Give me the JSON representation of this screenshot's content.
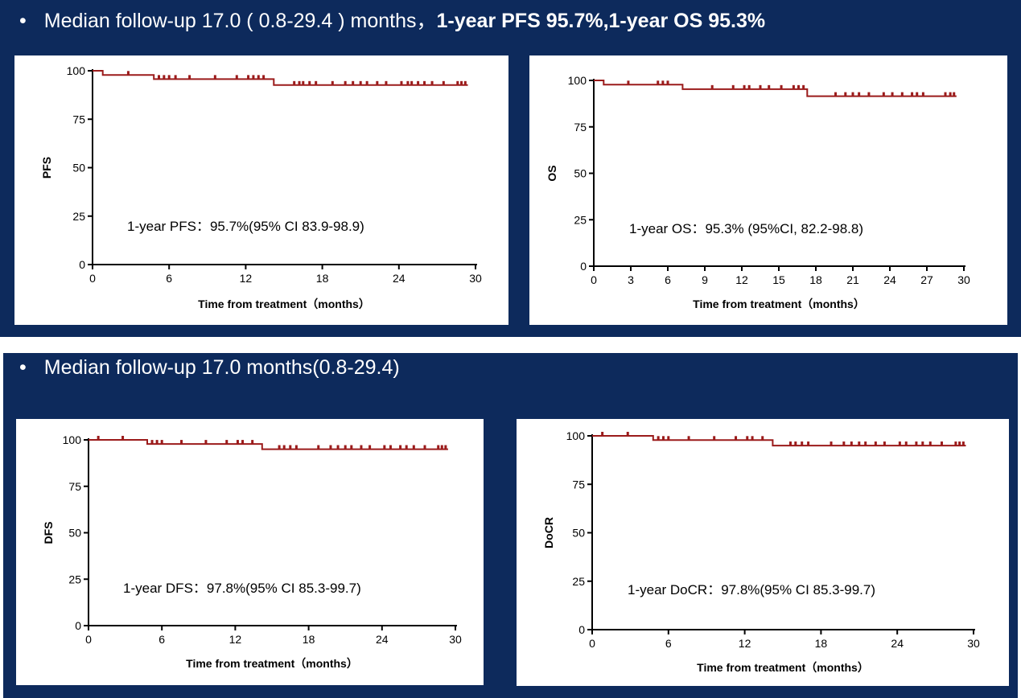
{
  "headline_top": {
    "bullet": "•",
    "text": "Median follow-up 17.0 ( 0.8-29.4 ) months，",
    "bold": "1-year PFS 95.7%,1-year OS  95.3%"
  },
  "headline_bottom": {
    "bullet": "•",
    "text": "Median follow-up 17.0 months(0.8-29.4)"
  },
  "colors": {
    "background_band": "#0d2a5c",
    "curve": "#9b1b1b",
    "panel": "#ffffff"
  },
  "chart_data": [
    {
      "id": "pfs",
      "type": "line",
      "step": true,
      "ylabel": "PFS",
      "xlabel": "Time from treatment（months）",
      "xlim": [
        0,
        30
      ],
      "ylim": [
        0,
        100
      ],
      "xticks": [
        0,
        6,
        12,
        18,
        24,
        30
      ],
      "yticks": [
        0,
        25,
        50,
        75,
        100
      ],
      "annotation": "1-year PFS：95.7%(95% CI 83.9-98.9)",
      "x": [
        0,
        0.8,
        0.8,
        4.8,
        4.8,
        14.2,
        14.2,
        29.4
      ],
      "y": [
        100,
        100,
        97.8,
        97.8,
        95.7,
        95.7,
        92.6,
        92.6
      ],
      "censored": [
        2.8,
        5.2,
        5.6,
        6.0,
        6.5,
        7.6,
        9.6,
        11.3,
        12.2,
        12.6,
        13.0,
        13.4,
        15.8,
        16.2,
        16.5,
        17.0,
        17.5,
        18.8,
        19.8,
        20.4,
        21.0,
        21.5,
        22.3,
        23.0,
        24.2,
        24.7,
        25.0,
        25.5,
        26.0,
        26.6,
        27.5,
        28.6,
        28.9,
        29.2
      ]
    },
    {
      "id": "os",
      "type": "line",
      "step": true,
      "ylabel": "OS",
      "xlabel": "Time from treatment（months）",
      "xlim": [
        0,
        30
      ],
      "ylim": [
        0,
        100
      ],
      "xticks": [
        0,
        3,
        6,
        9,
        12,
        15,
        18,
        21,
        24,
        27,
        30
      ],
      "yticks": [
        0,
        25,
        50,
        75,
        100
      ],
      "annotation": "1-year OS：95.3% (95%CI, 82.2-98.8)",
      "x": [
        0,
        0.8,
        0.8,
        7.2,
        7.2,
        17.3,
        17.3,
        29.4
      ],
      "y": [
        100,
        100,
        97.7,
        97.7,
        95.3,
        95.3,
        91.5,
        91.5
      ],
      "censored": [
        2.8,
        5.2,
        5.6,
        6.0,
        9.6,
        11.3,
        12.2,
        12.6,
        13.5,
        14.2,
        15.2,
        16.2,
        16.6,
        17.0,
        19.6,
        20.4,
        21.0,
        21.5,
        22.3,
        23.5,
        24.2,
        25.0,
        25.8,
        26.2,
        26.7,
        28.5,
        28.9,
        29.2
      ]
    },
    {
      "id": "dfs",
      "type": "line",
      "step": true,
      "ylabel": "DFS",
      "xlabel": "Time from treatment（months）",
      "xlim": [
        0,
        30
      ],
      "ylim": [
        0,
        100
      ],
      "xticks": [
        0,
        6,
        12,
        18,
        24,
        30
      ],
      "yticks": [
        0,
        25,
        50,
        75,
        100
      ],
      "annotation": "1-year DFS：97.8%(95% CI 85.3-99.7)",
      "x": [
        0,
        4.8,
        4.8,
        14.2,
        14.2,
        29.4
      ],
      "y": [
        100,
        100,
        97.8,
        97.8,
        95.0,
        95.0
      ],
      "censored": [
        0.8,
        2.8,
        5.2,
        5.6,
        6.0,
        7.6,
        9.6,
        11.3,
        12.2,
        12.6,
        13.4,
        15.6,
        16.0,
        16.5,
        17.0,
        18.8,
        19.8,
        20.4,
        21.0,
        21.5,
        22.3,
        23.0,
        24.2,
        24.7,
        25.5,
        26.0,
        26.6,
        27.5,
        28.6,
        28.9,
        29.2
      ]
    },
    {
      "id": "docr",
      "type": "line",
      "step": true,
      "ylabel": "DoCR",
      "xlabel": "Time from treatment（months）",
      "xlim": [
        0,
        30
      ],
      "ylim": [
        0,
        100
      ],
      "xticks": [
        0,
        6,
        12,
        18,
        24,
        30
      ],
      "yticks": [
        0,
        25,
        50,
        75,
        100
      ],
      "annotation": "1-year DoCR：97.8%(95% CI 85.3-99.7)",
      "x": [
        0,
        4.8,
        4.8,
        14.2,
        14.2,
        29.4
      ],
      "y": [
        100,
        100,
        97.8,
        97.8,
        95.0,
        95.0
      ],
      "censored": [
        0.8,
        2.8,
        5.2,
        5.6,
        6.0,
        7.6,
        9.6,
        11.3,
        12.2,
        12.6,
        13.4,
        15.6,
        16.0,
        16.5,
        17.0,
        18.8,
        19.8,
        20.4,
        21.0,
        21.5,
        22.3,
        23.0,
        24.2,
        24.7,
        25.5,
        26.0,
        26.6,
        27.5,
        28.6,
        28.9,
        29.2
      ]
    }
  ]
}
